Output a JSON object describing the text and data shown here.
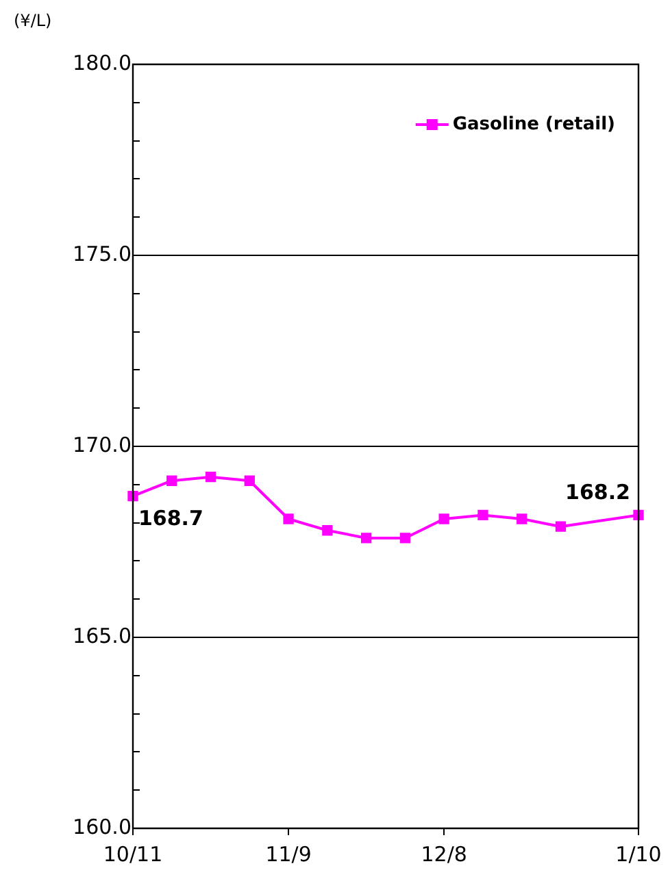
{
  "chart_data": {
    "type": "line",
    "ylabel": "(¥/L)",
    "categories": [
      "10/11",
      null,
      null,
      null,
      "11/9",
      null,
      null,
      null,
      "12/8",
      null,
      null,
      null,
      null,
      "1/10"
    ],
    "series": [
      {
        "name": "Gasoline (retail)",
        "color": "#ff00ff",
        "values": [
          168.7,
          169.1,
          169.2,
          169.1,
          168.1,
          167.8,
          167.6,
          167.6,
          168.1,
          168.2,
          168.1,
          167.9,
          null,
          168.2
        ],
        "value_labels": [
          "168.7",
          null,
          null,
          null,
          null,
          null,
          null,
          null,
          null,
          null,
          null,
          null,
          null,
          "168.2"
        ]
      }
    ],
    "ylim": [
      160,
      180
    ],
    "yticks": [
      {
        "value": 160,
        "label": "160.0"
      },
      {
        "value": 161,
        "label": null
      },
      {
        "value": 162,
        "label": null
      },
      {
        "value": 163,
        "label": null
      },
      {
        "value": 164,
        "label": null
      },
      {
        "value": 165,
        "label": "165.0"
      },
      {
        "value": 166,
        "label": null
      },
      {
        "value": 167,
        "label": null
      },
      {
        "value": 168,
        "label": null
      },
      {
        "value": 169,
        "label": null
      },
      {
        "value": 170,
        "label": "170.0"
      },
      {
        "value": 171,
        "label": null
      },
      {
        "value": 172,
        "label": null
      },
      {
        "value": 173,
        "label": null
      },
      {
        "value": 174,
        "label": null
      },
      {
        "value": 175,
        "label": "175.0"
      },
      {
        "value": 176,
        "label": null
      },
      {
        "value": 177,
        "label": null
      },
      {
        "value": 178,
        "label": null
      },
      {
        "value": 179,
        "label": null
      },
      {
        "value": 180,
        "label": "180.0"
      }
    ],
    "grid": "y",
    "legend": "top right",
    "marker": "square",
    "line_style": "solid"
  }
}
